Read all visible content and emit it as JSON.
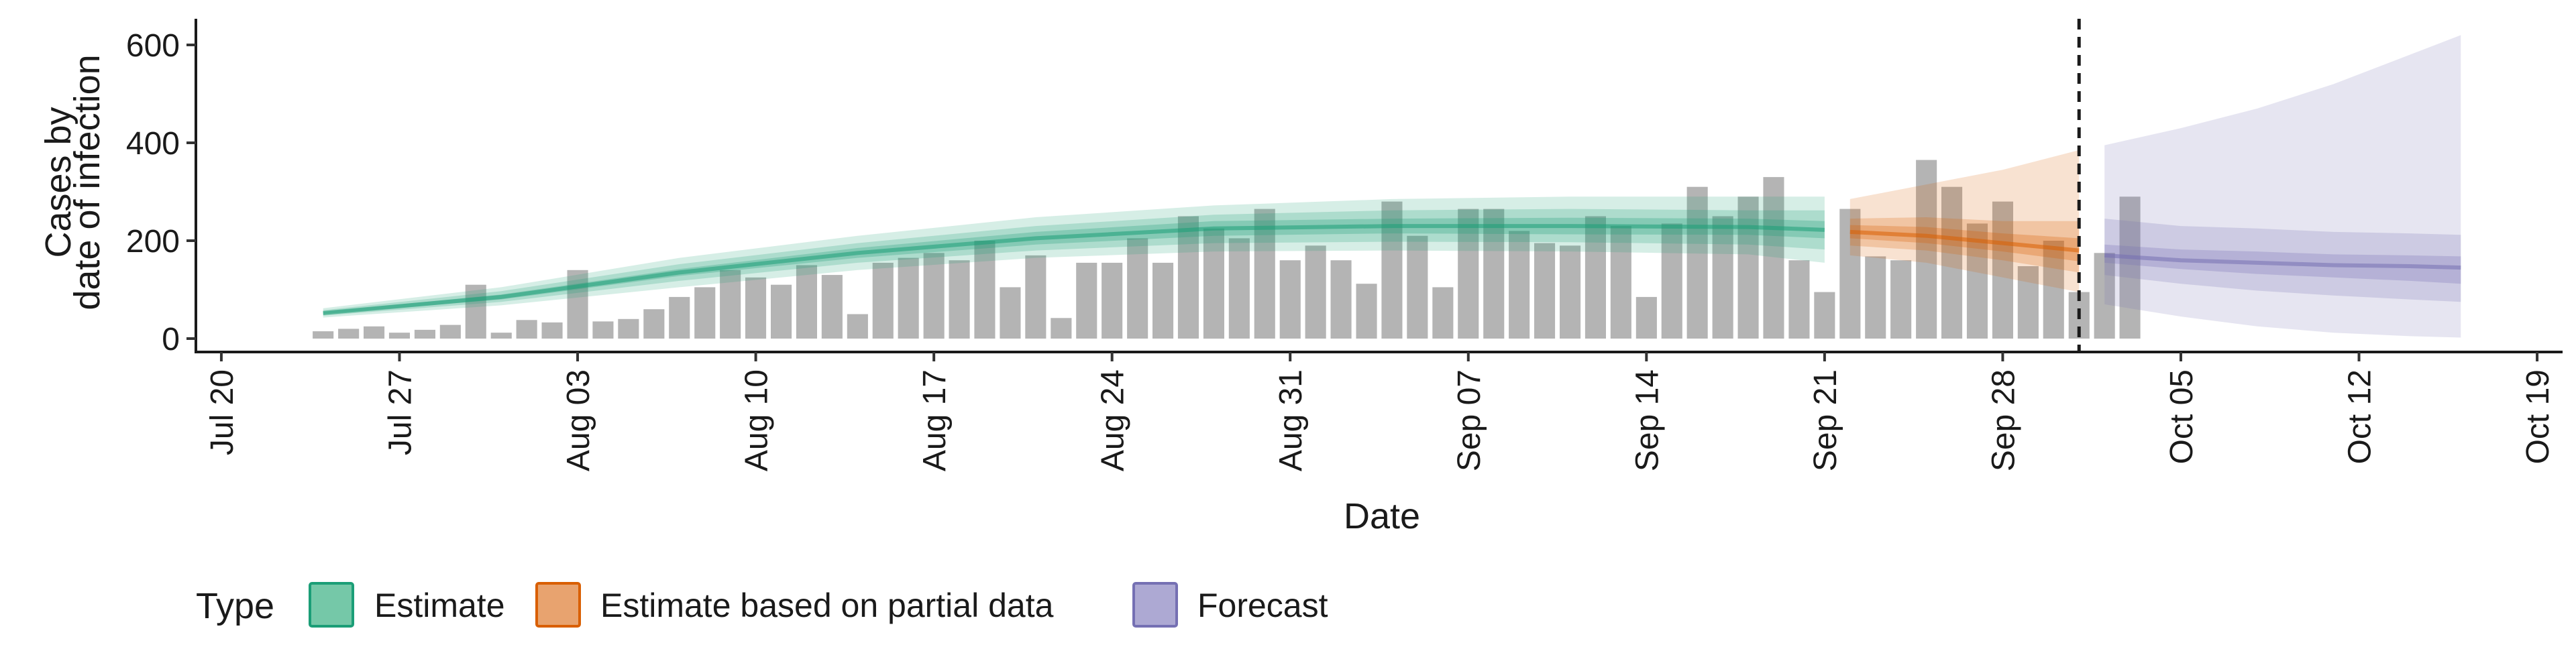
{
  "chart_data": {
    "type": "bar",
    "xlabel": "Date",
    "ylabel_lines": [
      "Cases by",
      "date of infection"
    ],
    "ylim": [
      0,
      650
    ],
    "yticks": [
      0,
      200,
      400,
      600
    ],
    "x_ticks": [
      {
        "date": "2020-07-20",
        "label": "Jul 20"
      },
      {
        "date": "2020-07-27",
        "label": "Jul 27"
      },
      {
        "date": "2020-08-03",
        "label": "Aug 03"
      },
      {
        "date": "2020-08-10",
        "label": "Aug 10"
      },
      {
        "date": "2020-08-17",
        "label": "Aug 17"
      },
      {
        "date": "2020-08-24",
        "label": "Aug 24"
      },
      {
        "date": "2020-08-31",
        "label": "Aug 31"
      },
      {
        "date": "2020-09-07",
        "label": "Sep 07"
      },
      {
        "date": "2020-09-14",
        "label": "Sep 14"
      },
      {
        "date": "2020-09-21",
        "label": "Sep 21"
      },
      {
        "date": "2020-09-28",
        "label": "Sep 28"
      },
      {
        "date": "2020-10-05",
        "label": "Oct 05"
      },
      {
        "date": "2020-10-12",
        "label": "Oct 12"
      },
      {
        "date": "2020-10-19",
        "label": "Oct 19"
      }
    ],
    "xlim": [
      "2020-07-19",
      "2020-10-20"
    ],
    "bars": {
      "start_date": "2020-07-24",
      "values": [
        15,
        20,
        25,
        12,
        18,
        28,
        110,
        12,
        38,
        33,
        140,
        35,
        40,
        60,
        85,
        105,
        140,
        125,
        110,
        150,
        130,
        50,
        155,
        165,
        175,
        160,
        200,
        105,
        170,
        42,
        155,
        155,
        205,
        155,
        250,
        225,
        205,
        265,
        160,
        190,
        160,
        112,
        280,
        210,
        105,
        265,
        265,
        220,
        195,
        190,
        250,
        230,
        85,
        235,
        310,
        250,
        290,
        330,
        160,
        95,
        265,
        168,
        160,
        365,
        310,
        235,
        280,
        148,
        200,
        95,
        175,
        290
      ]
    },
    "estimate": {
      "name": "Estimate",
      "dates": [
        "2020-07-24",
        "2020-07-31",
        "2020-08-07",
        "2020-08-14",
        "2020-08-21",
        "2020-08-28",
        "2020-09-04",
        "2020-09-11",
        "2020-09-18",
        "2020-09-21"
      ],
      "median": [
        52,
        85,
        135,
        175,
        205,
        225,
        230,
        230,
        228,
        222
      ],
      "inner": [
        [
          50,
          55
        ],
        [
          80,
          90
        ],
        [
          128,
          142
        ],
        [
          165,
          185
        ],
        [
          192,
          218
        ],
        [
          210,
          240
        ],
        [
          215,
          245
        ],
        [
          213,
          247
        ],
        [
          212,
          245
        ],
        [
          205,
          240
        ]
      ],
      "mid": [
        [
          47,
          58
        ],
        [
          75,
          97
        ],
        [
          118,
          152
        ],
        [
          155,
          195
        ],
        [
          180,
          230
        ],
        [
          195,
          253
        ],
        [
          198,
          262
        ],
        [
          197,
          265
        ],
        [
          192,
          262
        ],
        [
          182,
          262
        ]
      ],
      "outer": [
        [
          43,
          62
        ],
        [
          68,
          105
        ],
        [
          105,
          165
        ],
        [
          140,
          210
        ],
        [
          165,
          248
        ],
        [
          178,
          272
        ],
        [
          180,
          285
        ],
        [
          178,
          290
        ],
        [
          172,
          290
        ],
        [
          155,
          290
        ]
      ]
    },
    "partial": {
      "name": "Estimate based on partial data",
      "dates": [
        "2020-09-22",
        "2020-09-25",
        "2020-09-28",
        "2020-10-01"
      ],
      "median": [
        218,
        210,
        195,
        180
      ],
      "inner": [
        [
          205,
          232
        ],
        [
          195,
          228
        ],
        [
          178,
          215
        ],
        [
          158,
          205
        ]
      ],
      "mid": [
        [
          190,
          245
        ],
        [
          180,
          248
        ],
        [
          160,
          240
        ],
        [
          135,
          240
        ]
      ],
      "outer": [
        [
          170,
          285
        ],
        [
          155,
          315
        ],
        [
          125,
          345
        ],
        [
          95,
          385
        ]
      ]
    },
    "forecast": {
      "name": "Forecast",
      "dates": [
        "2020-10-02",
        "2020-10-05",
        "2020-10-08",
        "2020-10-11",
        "2020-10-14",
        "2020-10-16"
      ],
      "median": [
        170,
        160,
        155,
        150,
        148,
        145
      ],
      "inner": [
        [
          155,
          192
        ],
        [
          142,
          182
        ],
        [
          132,
          178
        ],
        [
          125,
          172
        ],
        [
          118,
          170
        ],
        [
          112,
          168
        ]
      ],
      "mid": [
        [
          130,
          245
        ],
        [
          112,
          230
        ],
        [
          98,
          225
        ],
        [
          88,
          218
        ],
        [
          80,
          215
        ],
        [
          75,
          212
        ]
      ],
      "outer": [
        [
          70,
          395
        ],
        [
          45,
          430
        ],
        [
          25,
          470
        ],
        [
          12,
          520
        ],
        [
          5,
          580
        ],
        [
          2,
          620
        ]
      ]
    },
    "vline_date": "2020-10-01",
    "legend_title": "Type",
    "legend_position": "bottom",
    "grid": false
  },
  "colors": {
    "bar": "#b4b4b4",
    "estimate": "#1b9e77",
    "partial": "#d95f02",
    "forecast": "#7570b3",
    "estimate_swatch": "#75c8a8",
    "partial_swatch": "#e8a36f",
    "forecast_swatch": "#ada9d3"
  }
}
